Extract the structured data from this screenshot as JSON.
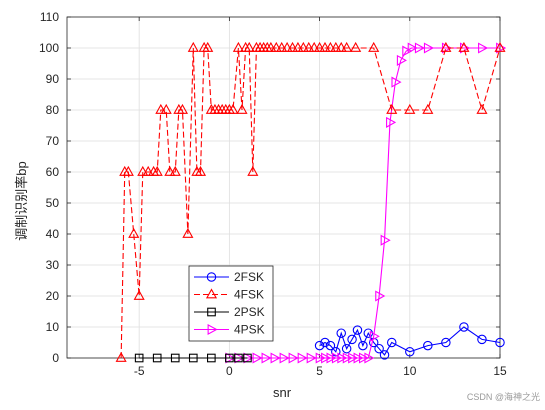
{
  "chart_data": {
    "type": "line",
    "xlabel": "snr",
    "ylabel": "调制识别率bp",
    "xlim": [
      -9,
      15
    ],
    "ylim": [
      0,
      110
    ],
    "xticks": [
      -5,
      0,
      5,
      10,
      15
    ],
    "yticks": [
      0,
      10,
      20,
      30,
      40,
      50,
      60,
      70,
      80,
      90,
      100,
      110
    ],
    "grid": true,
    "legend_position": "lower-left",
    "series": [
      {
        "name": "2FSK",
        "color": "#0000ff",
        "line_style": "solid",
        "marker": "circle",
        "x": [
          5.0,
          5.3,
          5.6,
          5.9,
          6.2,
          6.5,
          6.8,
          7.1,
          7.4,
          7.7,
          8.0,
          8.3,
          8.6,
          9.0,
          10.0,
          11.0,
          12.0,
          13.0,
          14.0,
          15.0
        ],
        "y": [
          4,
          5,
          4,
          2,
          8,
          3,
          6,
          9,
          4,
          8,
          5,
          3,
          1,
          5,
          2,
          4,
          5,
          10,
          6,
          5
        ]
      },
      {
        "name": "4PSK",
        "color": "#ff00ff",
        "line_style": "solid",
        "marker": "triangle-right",
        "x": [
          0.0,
          0.5,
          1.0,
          1.5,
          2.0,
          2.5,
          3.0,
          3.5,
          4.0,
          4.5,
          5.0,
          5.3,
          5.6,
          5.9,
          6.2,
          6.5,
          6.8,
          7.1,
          7.4,
          7.7,
          8.0,
          8.3,
          8.6,
          8.9,
          9.2,
          9.5,
          9.8,
          10.1,
          10.5,
          11.0,
          12.0,
          13.0,
          14.0,
          15.0
        ],
        "y": [
          0,
          0,
          0,
          0,
          0,
          0,
          0,
          0,
          0,
          0,
          0,
          0,
          0,
          0,
          0,
          0,
          0,
          0,
          0,
          0,
          7,
          20,
          38,
          76,
          89,
          96,
          99,
          100,
          100,
          100,
          100,
          100,
          100,
          100
        ]
      },
      {
        "name": "2PSK",
        "color": "#000000",
        "line_style": "solid",
        "marker": "square",
        "x": [
          -5.0,
          -4.0,
          -3.0,
          -2.0,
          -1.0,
          0.0,
          0.5,
          1.0
        ],
        "y": [
          0,
          0,
          0,
          0,
          0,
          0,
          0,
          0
        ]
      },
      {
        "name": "4FSK",
        "color": "#ff0000",
        "line_style": "dashed",
        "marker": "triangle-up",
        "x": [
          -6.0,
          -5.8,
          -5.6,
          -5.3,
          -5.0,
          -4.8,
          -4.5,
          -4.2,
          -4.0,
          -3.8,
          -3.5,
          -3.3,
          -3.0,
          -2.8,
          -2.6,
          -2.3,
          -2.0,
          -1.8,
          -1.6,
          -1.4,
          -1.2,
          -1.0,
          -0.8,
          -0.6,
          -0.4,
          -0.2,
          0.0,
          0.2,
          0.5,
          0.7,
          0.9,
          1.1,
          1.3,
          1.5,
          1.7,
          1.9,
          2.1,
          2.3,
          2.6,
          2.9,
          3.2,
          3.5,
          3.8,
          4.1,
          4.4,
          4.7,
          5.0,
          5.3,
          5.6,
          5.9,
          6.2,
          6.5,
          7.0,
          8.0,
          9.0,
          10.0,
          11.0,
          12.0,
          13.0,
          14.0,
          15.0
        ],
        "y": [
          0,
          60,
          60,
          40,
          20,
          60,
          60,
          60,
          60,
          80,
          80,
          60,
          60,
          80,
          80,
          40,
          100,
          60,
          60,
          100,
          100,
          80,
          80,
          80,
          80,
          80,
          80,
          80,
          100,
          80,
          100,
          100,
          60,
          100,
          100,
          100,
          100,
          100,
          100,
          100,
          100,
          100,
          100,
          100,
          100,
          100,
          100,
          100,
          100,
          100,
          100,
          100,
          100,
          100,
          80,
          80,
          80,
          100,
          100,
          80,
          100
        ]
      }
    ],
    "legend_order": [
      "2FSK",
      "4FSK",
      "2PSK",
      "4PSK"
    ]
  },
  "watermark": "CSDN @海神之光"
}
